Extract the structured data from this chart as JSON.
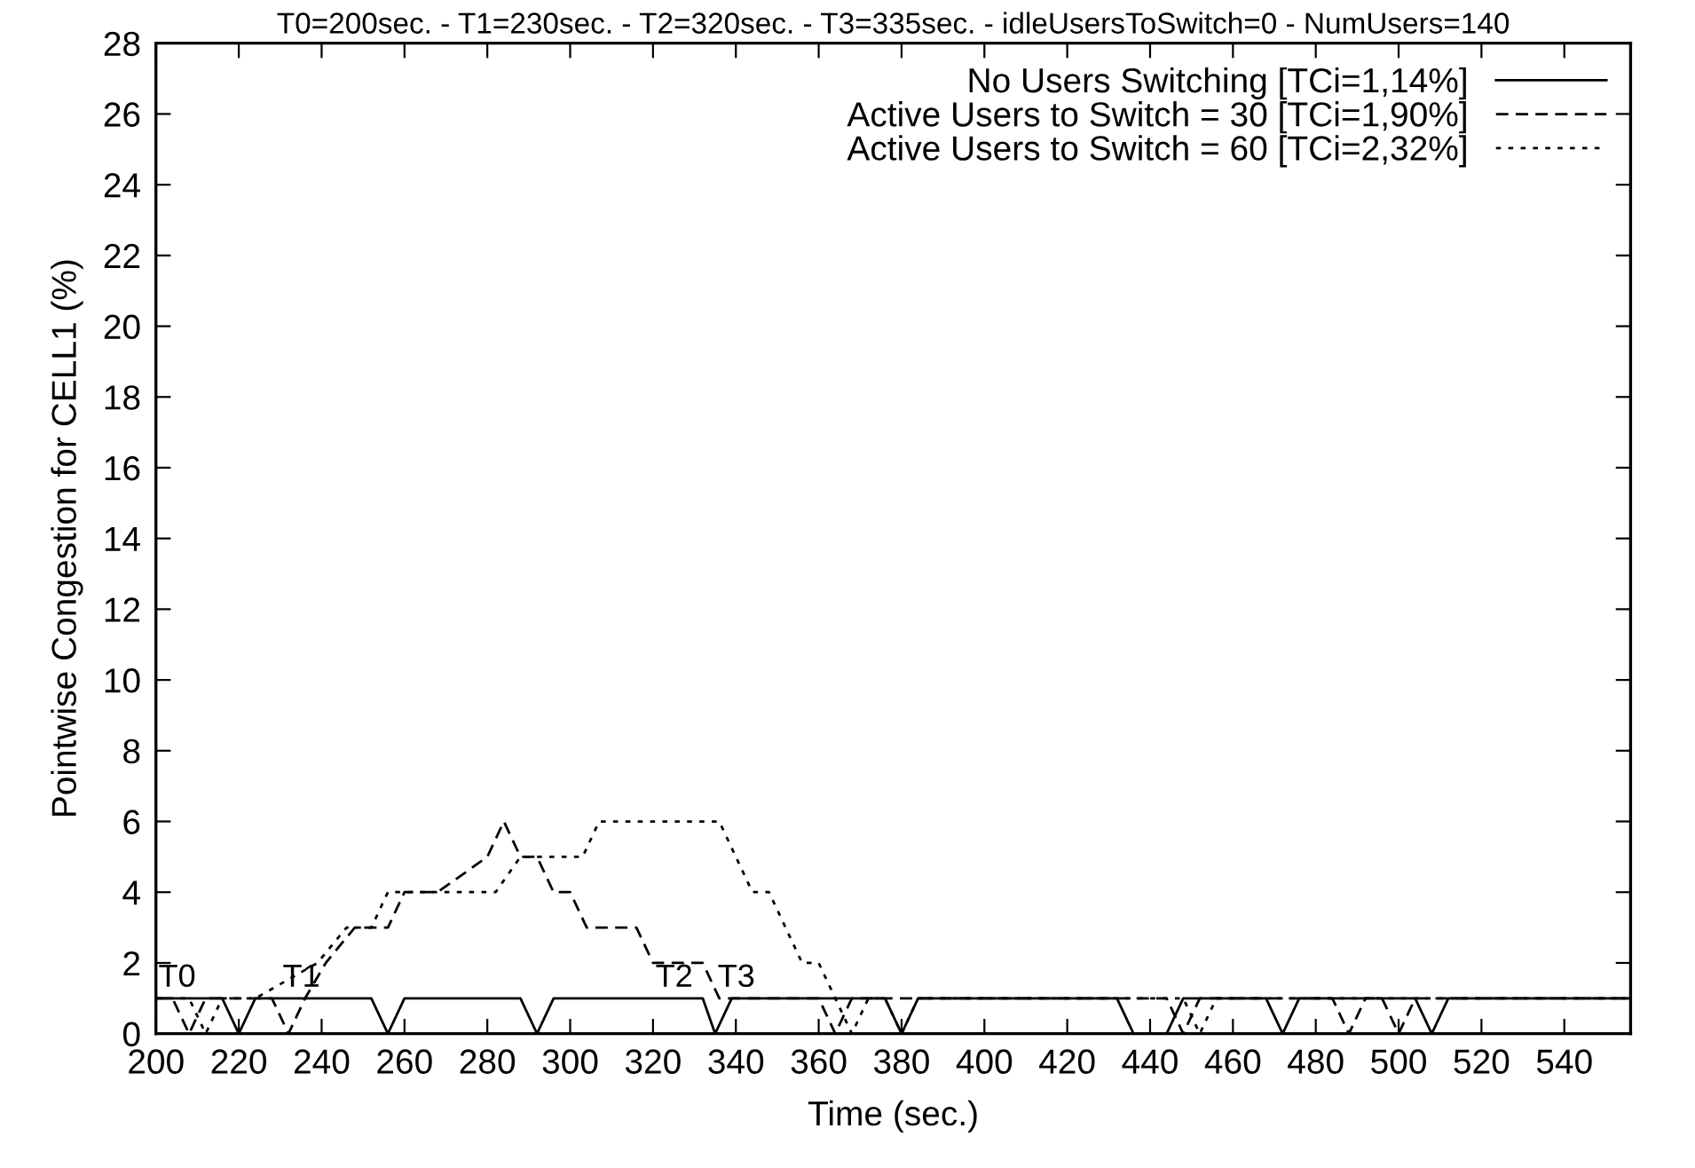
{
  "chart_data": {
    "type": "line",
    "title": "T0=200sec. - T1=230sec. - T2=320sec. - T3=335sec. - idleUsersToSwitch=0 - NumUsers=140",
    "xlabel": "Time (sec.)",
    "ylabel": "Pointwise Congestion for CELL1 (%)",
    "xlim": [
      200,
      556
    ],
    "xticks": [
      200,
      220,
      240,
      260,
      280,
      300,
      320,
      340,
      360,
      380,
      400,
      420,
      440,
      460,
      480,
      500,
      520,
      540
    ],
    "ylim": [
      0,
      28
    ],
    "yticks": [
      0,
      2,
      4,
      6,
      8,
      10,
      12,
      14,
      16,
      18,
      20,
      22,
      24,
      26,
      28
    ],
    "grid": false,
    "legend": "top right",
    "marker": "none",
    "series": [
      {
        "name": "No Users Switching [TCi=1,14%]",
        "color": "#000000",
        "line_style": "solid",
        "x": [
          200,
          216,
          220,
          224,
          252,
          256,
          260,
          288,
          292,
          296,
          332,
          335,
          339,
          376,
          380,
          384,
          432,
          436,
          444,
          448,
          468,
          472,
          476,
          504,
          508,
          512,
          556
        ],
        "values": [
          1,
          1,
          0,
          1,
          1,
          0,
          1,
          1,
          0,
          1,
          1,
          0,
          1,
          1,
          0,
          1,
          1,
          0,
          0,
          1,
          1,
          0,
          1,
          1,
          0,
          1,
          1
        ]
      },
      {
        "name": "Active Users to Switch = 30 [TCi=1,90%]",
        "color": "#000000",
        "line_style": "dashed",
        "x": [
          200,
          204,
          208,
          212,
          228,
          232,
          236,
          241,
          248,
          256,
          260,
          268,
          280,
          284,
          288,
          292,
          296,
          300,
          304,
          316,
          320,
          332,
          336,
          360,
          364,
          368,
          444,
          448,
          452,
          456,
          484,
          488,
          492,
          496,
          500,
          504,
          556
        ],
        "values": [
          1,
          1,
          0,
          1,
          1,
          0,
          1,
          2,
          3,
          3,
          4,
          4,
          5,
          6,
          5,
          5,
          4,
          4,
          3,
          3,
          2,
          2,
          1,
          1,
          0,
          1,
          1,
          0,
          1,
          1,
          1,
          0,
          1,
          1,
          0,
          1,
          1
        ]
      },
      {
        "name": "Active Users to Switch = 60 [TCi=2,32%]",
        "color": "#000000",
        "line_style": "dotted",
        "x": [
          200,
          208,
          212,
          216,
          220,
          224,
          239,
          246,
          252,
          256,
          282,
          288,
          303,
          307,
          336,
          340,
          344,
          348,
          352,
          356,
          360,
          364,
          368,
          372,
          376,
          380,
          384,
          448,
          452,
          456,
          460,
          556
        ],
        "values": [
          1,
          1,
          0,
          1,
          1,
          1,
          2,
          3,
          3,
          4,
          4,
          5,
          5,
          6,
          6,
          5,
          4,
          4,
          3,
          2,
          2,
          1,
          0,
          1,
          1,
          0,
          1,
          1,
          0,
          1,
          1,
          1
        ]
      }
    ],
    "annotations": [
      {
        "text": "T0",
        "x": 200,
        "y": 1
      },
      {
        "text": "T1",
        "x": 230,
        "y": 1
      },
      {
        "text": "T2",
        "x": 320,
        "y": 1
      },
      {
        "text": "T3",
        "x": 335,
        "y": 1
      }
    ]
  }
}
